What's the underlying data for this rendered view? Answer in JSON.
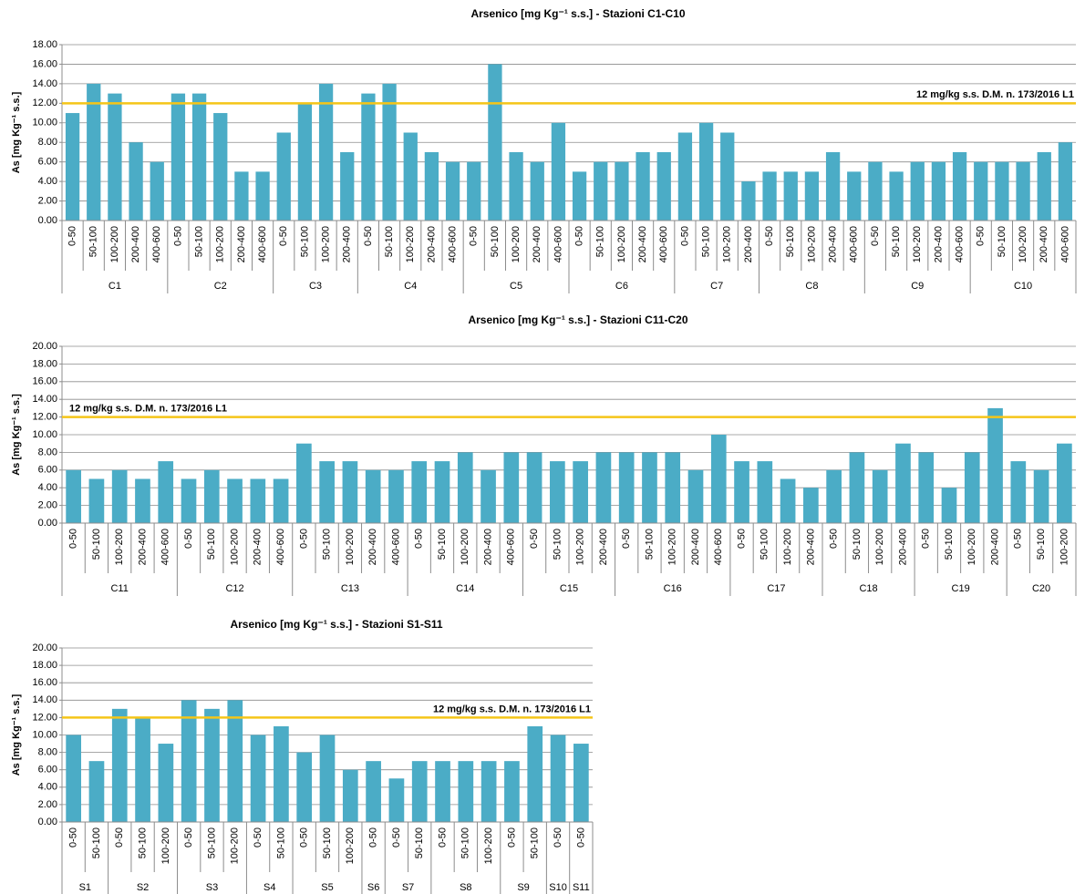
{
  "chart_data": [
    {
      "type": "bar",
      "title": "Arsenico [mg Kg⁻¹ s.s.] - Stazioni C1-C10",
      "ylabel": "As [mg Kg⁻¹ s.s.]",
      "color": "#4bacc6",
      "ylim": [
        0,
        18
      ],
      "yticks": [
        {
          "value": 0,
          "label": "0.00"
        },
        {
          "value": 2,
          "label": "2.00"
        },
        {
          "value": 4,
          "label": "4.00"
        },
        {
          "value": 6,
          "label": "6.00"
        },
        {
          "value": 8,
          "label": "8.00"
        },
        {
          "value": 10,
          "label": "10.00"
        },
        {
          "value": 12,
          "label": "12.00"
        },
        {
          "value": 14,
          "label": "14.00"
        },
        {
          "value": 16,
          "label": "16.00"
        },
        {
          "value": 18,
          "label": "18.00"
        }
      ],
      "grid": true,
      "threshold": {
        "value": 12,
        "label": "12 mg/kg s.s. D.M. n. 173/2016 L1",
        "color": "#f5c518"
      },
      "groups": [
        {
          "label": "C1",
          "categories": [
            "0-50",
            "50-100",
            "100-200",
            "200-400",
            "400-600"
          ],
          "values": [
            11,
            14,
            13,
            8,
            6
          ]
        },
        {
          "label": "C2",
          "categories": [
            "0-50",
            "50-100",
            "100-200",
            "200-400",
            "400-600"
          ],
          "values": [
            13,
            13,
            11,
            5,
            5
          ]
        },
        {
          "label": "C3",
          "categories": [
            "0-50",
            "50-100",
            "100-200",
            "200-400"
          ],
          "values": [
            9,
            12,
            14,
            7
          ]
        },
        {
          "label": "C4",
          "categories": [
            "0-50",
            "50-100",
            "100-200",
            "200-400",
            "400-600"
          ],
          "values": [
            13,
            14,
            9,
            7,
            6
          ]
        },
        {
          "label": "C5",
          "categories": [
            "0-50",
            "50-100",
            "100-200",
            "200-400",
            "400-600"
          ],
          "values": [
            6,
            16,
            7,
            6,
            10
          ]
        },
        {
          "label": "C6",
          "categories": [
            "0-50",
            "50-100",
            "100-200",
            "200-400",
            "400-600"
          ],
          "values": [
            5,
            6,
            6,
            7,
            7
          ]
        },
        {
          "label": "C7",
          "categories": [
            "0-50",
            "50-100",
            "100-200",
            "200-400"
          ],
          "values": [
            9,
            10,
            9,
            4
          ]
        },
        {
          "label": "C8",
          "categories": [
            "0-50",
            "50-100",
            "100-200",
            "200-400",
            "400-600"
          ],
          "values": [
            5,
            5,
            5,
            7,
            5
          ]
        },
        {
          "label": "C9",
          "categories": [
            "0-50",
            "50-100",
            "100-200",
            "200-400",
            "400-600"
          ],
          "values": [
            6,
            5,
            6,
            6,
            7
          ]
        },
        {
          "label": "C10",
          "categories": [
            "0-50",
            "50-100",
            "100-200",
            "200-400",
            "400-600"
          ],
          "values": [
            6,
            6,
            6,
            7,
            8
          ]
        }
      ]
    },
    {
      "type": "bar",
      "title": "Arsenico [mg Kg⁻¹ s.s.] - Stazioni C11-C20",
      "ylabel": "As [mg Kg⁻¹ s.s.]",
      "color": "#4bacc6",
      "ylim": [
        0,
        20
      ],
      "yticks": [
        {
          "value": 0,
          "label": "0.00"
        },
        {
          "value": 2,
          "label": "2.00"
        },
        {
          "value": 4,
          "label": "4.00"
        },
        {
          "value": 6,
          "label": "6.00"
        },
        {
          "value": 8,
          "label": "8.00"
        },
        {
          "value": 10,
          "label": "10.00"
        },
        {
          "value": 12,
          "label": "12.00"
        },
        {
          "value": 14,
          "label": "14.00"
        },
        {
          "value": 16,
          "label": "16.00"
        },
        {
          "value": 18,
          "label": "18.00"
        },
        {
          "value": 20,
          "label": "20.00"
        }
      ],
      "grid": true,
      "threshold": {
        "value": 12,
        "label": "12 mg/kg s.s. D.M. n. 173/2016 L1",
        "color": "#f5c518"
      },
      "groups": [
        {
          "label": "C11",
          "categories": [
            "0-50",
            "50-100",
            "100-200",
            "200-400",
            "400-600"
          ],
          "values": [
            6,
            5,
            6,
            5,
            7
          ]
        },
        {
          "label": "C12",
          "categories": [
            "0-50",
            "50-100",
            "100-200",
            "200-400",
            "400-600"
          ],
          "values": [
            5,
            6,
            5,
            5,
            5
          ]
        },
        {
          "label": "C13",
          "categories": [
            "0-50",
            "50-100",
            "100-200",
            "200-400",
            "400-600"
          ],
          "values": [
            9,
            7,
            7,
            6,
            6
          ]
        },
        {
          "label": "C14",
          "categories": [
            "0-50",
            "50-100",
            "100-200",
            "200-400",
            "400-600"
          ],
          "values": [
            7,
            7,
            8,
            6,
            8
          ]
        },
        {
          "label": "C15",
          "categories": [
            "0-50",
            "50-100",
            "100-200",
            "200-400"
          ],
          "values": [
            8,
            7,
            7,
            8
          ]
        },
        {
          "label": "C16",
          "categories": [
            "0-50",
            "50-100",
            "100-200",
            "200-400",
            "400-600"
          ],
          "values": [
            8,
            8,
            8,
            6,
            10
          ]
        },
        {
          "label": "C17",
          "categories": [
            "0-50",
            "50-100",
            "100-200",
            "200-400"
          ],
          "values": [
            7,
            7,
            5,
            4
          ]
        },
        {
          "label": "C18",
          "categories": [
            "0-50",
            "50-100",
            "100-200",
            "200-400"
          ],
          "values": [
            6,
            8,
            6,
            9
          ]
        },
        {
          "label": "C19",
          "categories": [
            "0-50",
            "50-100",
            "100-200",
            "200-400"
          ],
          "values": [
            8,
            4,
            8,
            13
          ]
        },
        {
          "label": "C20",
          "categories": [
            "0-50",
            "50-100",
            "100-200"
          ],
          "values": [
            7,
            6,
            9
          ]
        }
      ]
    },
    {
      "type": "bar",
      "title": "Arsenico [mg Kg⁻¹ s.s.] - Stazioni S1-S11",
      "ylabel": "As [mg Kg⁻¹ s.s.]",
      "color": "#4bacc6",
      "ylim": [
        0,
        20
      ],
      "yticks": [
        {
          "value": 0,
          "label": "0.00"
        },
        {
          "value": 2,
          "label": "2.00"
        },
        {
          "value": 4,
          "label": "4.00"
        },
        {
          "value": 6,
          "label": "6.00"
        },
        {
          "value": 8,
          "label": "8.00"
        },
        {
          "value": 10,
          "label": "10.00"
        },
        {
          "value": 12,
          "label": "12.00"
        },
        {
          "value": 14,
          "label": "14.00"
        },
        {
          "value": 16,
          "label": "16.00"
        },
        {
          "value": 18,
          "label": "18.00"
        },
        {
          "value": 20,
          "label": "20.00"
        }
      ],
      "grid": true,
      "threshold": {
        "value": 12,
        "label": "12 mg/kg s.s. D.M. n. 173/2016 L1",
        "color": "#f5c518"
      },
      "groups": [
        {
          "label": "S1",
          "categories": [
            "0-50",
            "50-100"
          ],
          "values": [
            10,
            7
          ]
        },
        {
          "label": "S2",
          "categories": [
            "0-50",
            "50-100",
            "100-200"
          ],
          "values": [
            13,
            12,
            9
          ]
        },
        {
          "label": "S3",
          "categories": [
            "0-50",
            "50-100",
            "100-200"
          ],
          "values": [
            14,
            13,
            14
          ]
        },
        {
          "label": "S4",
          "categories": [
            "0-50",
            "50-100"
          ],
          "values": [
            10,
            11
          ]
        },
        {
          "label": "S5",
          "categories": [
            "0-50",
            "50-100",
            "100-200"
          ],
          "values": [
            8,
            10,
            6
          ]
        },
        {
          "label": "S6",
          "categories": [
            "0-50"
          ],
          "values": [
            7
          ]
        },
        {
          "label": "S7",
          "categories": [
            "0-50",
            "50-100"
          ],
          "values": [
            5,
            7
          ]
        },
        {
          "label": "S8",
          "categories": [
            "0-50",
            "50-100",
            "100-200"
          ],
          "values": [
            7,
            7,
            7
          ]
        },
        {
          "label": "S9",
          "categories": [
            "0-50",
            "50-100"
          ],
          "values": [
            7,
            11
          ]
        },
        {
          "label": "S10",
          "categories": [
            "0-50"
          ],
          "values": [
            10
          ]
        },
        {
          "label": "S11",
          "categories": [
            "0-50"
          ],
          "values": [
            9
          ]
        }
      ]
    }
  ]
}
